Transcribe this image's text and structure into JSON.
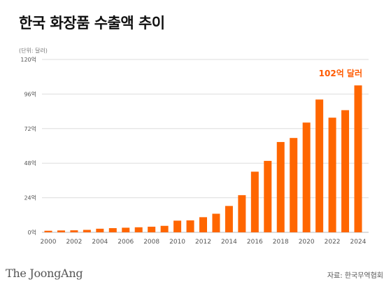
{
  "header": {
    "title": "한국 화장품 수출액 추이",
    "unit": "(단위: 달러)"
  },
  "footer": {
    "brand": "The JoongAng",
    "source": "자료: 한국무역협회"
  },
  "colors": {
    "bar": "#ff6600",
    "annotation": "#ff5a00",
    "grid": "#dddddd",
    "axis_text": "#555555"
  },
  "chart_data": {
    "type": "bar",
    "title": "한국 화장품 수출액 추이",
    "xlabel": "",
    "ylabel": "",
    "ylim": [
      0,
      120
    ],
    "y_ticks": [
      0,
      24,
      48,
      72,
      96,
      120
    ],
    "y_tick_labels": [
      "0억",
      "24억",
      "48억",
      "72억",
      "96억",
      "120억"
    ],
    "x_tick_labels": [
      "2000",
      "2002",
      "2004",
      "2006",
      "2008",
      "2010",
      "2012",
      "2014",
      "2016",
      "2018",
      "2020",
      "2022",
      "2024"
    ],
    "categories": [
      "2000",
      "2001",
      "2002",
      "2003",
      "2004",
      "2005",
      "2006",
      "2007",
      "2008",
      "2009",
      "2010",
      "2011",
      "2012",
      "2013",
      "2014",
      "2015",
      "2016",
      "2017",
      "2018",
      "2019",
      "2020",
      "2021",
      "2022",
      "2023",
      "2024"
    ],
    "values": [
      1.1,
      1.3,
      1.4,
      1.7,
      2.5,
      2.9,
      3.2,
      3.5,
      3.9,
      4.5,
      8.1,
      8.3,
      10.5,
      12.9,
      18.3,
      25.8,
      42.1,
      49.6,
      62.7,
      65.5,
      76.2,
      92.2,
      79.6,
      84.8,
      102.0
    ],
    "annotation": {
      "category": "2024",
      "text": "102억 달러"
    },
    "grid": true,
    "legend": "none"
  }
}
